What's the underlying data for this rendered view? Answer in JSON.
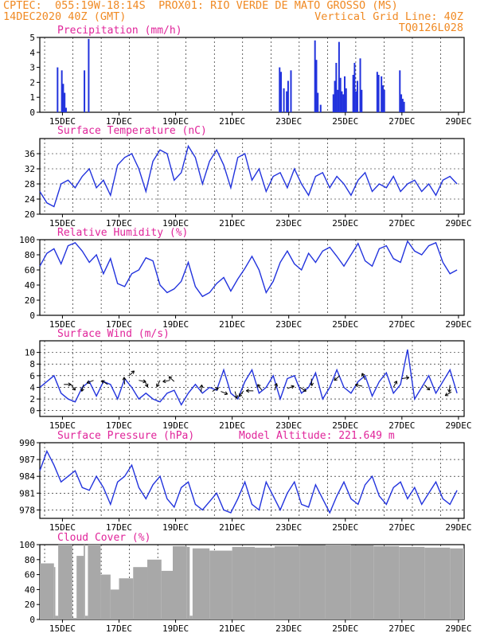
{
  "header": {
    "line1_left": "CPTEC:  055:19W-18:14S  PROX01: RIO VERDE DE MATO GROSSO (MS)",
    "line2_left": "14DEC2020 40Z (GMT)",
    "line2_right": "Vertical Grid Line: 40Z",
    "line3_right": "TQ0126L028"
  },
  "colors": {
    "header": "#f08a24",
    "titles": "#e0249a",
    "series": "#2233dd",
    "cloud": "#a8a8a8",
    "axis": "#000000"
  },
  "x_tick_labels": [
    "15DEC",
    "17DEC",
    "19DEC",
    "21DEC",
    "23DEC",
    "25DEC",
    "27DEC",
    "29DEC"
  ],
  "chart_data": [
    {
      "type": "bar",
      "title": "Precipitation (mm/h)",
      "ylim": [
        0,
        5
      ],
      "yticks": [
        0,
        1,
        2,
        3,
        4,
        5
      ],
      "values": [
        [
          0.6,
          3.0
        ],
        [
          0.75,
          2.8
        ],
        [
          0.8,
          1.9
        ],
        [
          0.85,
          1.3
        ],
        [
          0.9,
          0.3
        ],
        [
          1.55,
          2.8
        ],
        [
          1.7,
          4.9
        ],
        [
          8.45,
          3.0
        ],
        [
          8.5,
          2.7
        ],
        [
          8.6,
          1.6
        ],
        [
          8.7,
          1.4
        ],
        [
          8.75,
          2.1
        ],
        [
          8.85,
          2.8
        ],
        [
          9.7,
          4.8
        ],
        [
          9.75,
          3.5
        ],
        [
          9.8,
          1.3
        ],
        [
          9.9,
          0.5
        ],
        [
          10.35,
          1.2
        ],
        [
          10.4,
          2.1
        ],
        [
          10.45,
          3.3
        ],
        [
          10.5,
          1.5
        ],
        [
          10.55,
          4.7
        ],
        [
          10.6,
          2.3
        ],
        [
          10.65,
          1.4
        ],
        [
          10.7,
          1.2
        ],
        [
          10.75,
          2.4
        ],
        [
          10.8,
          1.6
        ],
        [
          11.05,
          2.5
        ],
        [
          11.1,
          3.3
        ],
        [
          11.15,
          1.4
        ],
        [
          11.2,
          2.1
        ],
        [
          11.3,
          3.6
        ],
        [
          11.35,
          1.5
        ],
        [
          11.9,
          2.7
        ],
        [
          11.95,
          2.5
        ],
        [
          12.05,
          2.4
        ],
        [
          12.1,
          1.8
        ],
        [
          12.15,
          1.5
        ],
        [
          12.7,
          2.8
        ],
        [
          12.75,
          1.2
        ],
        [
          12.8,
          0.9
        ],
        [
          12.85,
          0.7
        ]
      ]
    },
    {
      "type": "line",
      "title": "Surface Temperature (nC)",
      "ylim": [
        20,
        40
      ],
      "yticks": [
        20,
        24,
        28,
        32,
        36
      ],
      "x": [
        0,
        0.25,
        0.5,
        0.75,
        1,
        1.25,
        1.5,
        1.75,
        2,
        2.25,
        2.5,
        2.75,
        3,
        3.25,
        3.5,
        3.75,
        4,
        4.25,
        4.5,
        4.75,
        5,
        5.25,
        5.5,
        5.75,
        6,
        6.25,
        6.5,
        6.75,
        7,
        7.25,
        7.5,
        7.75,
        8,
        8.25,
        8.5,
        8.75,
        9,
        9.25,
        9.5,
        9.75,
        10,
        10.25,
        10.5,
        10.75,
        11,
        11.25,
        11.5,
        11.75,
        12,
        12.25,
        12.5,
        12.75,
        13,
        13.25,
        13.5,
        13.75,
        14,
        14.25,
        14.5,
        14.75
      ],
      "y": [
        26,
        23,
        22,
        28,
        29,
        27,
        30,
        32,
        27,
        29,
        25,
        33,
        35,
        36,
        32,
        26,
        34,
        37,
        36,
        29,
        31,
        38,
        35,
        28,
        34,
        37,
        33,
        27,
        35,
        36,
        29,
        32,
        26,
        30,
        31,
        27,
        32,
        28,
        25,
        30,
        31,
        27,
        30,
        28,
        25,
        29,
        31,
        26,
        28,
        27,
        30,
        26,
        28,
        29,
        26,
        28,
        25,
        29,
        30,
        28
      ]
    },
    {
      "type": "line",
      "title": "Relative Humidity (%)",
      "ylim": [
        0,
        100
      ],
      "yticks": [
        0,
        20,
        40,
        60,
        80,
        100
      ],
      "x": [
        0,
        0.25,
        0.5,
        0.75,
        1,
        1.25,
        1.5,
        1.75,
        2,
        2.25,
        2.5,
        2.75,
        3,
        3.25,
        3.5,
        3.75,
        4,
        4.25,
        4.5,
        4.75,
        5,
        5.25,
        5.5,
        5.75,
        6,
        6.25,
        6.5,
        6.75,
        7,
        7.25,
        7.5,
        7.75,
        8,
        8.25,
        8.5,
        8.75,
        9,
        9.25,
        9.5,
        9.75,
        10,
        10.25,
        10.5,
        10.75,
        11,
        11.25,
        11.5,
        11.75,
        12,
        12.25,
        12.5,
        12.75,
        13,
        13.25,
        13.5,
        13.75,
        14,
        14.25,
        14.5,
        14.75
      ],
      "y": [
        65,
        82,
        88,
        68,
        92,
        96,
        85,
        70,
        80,
        55,
        75,
        42,
        38,
        55,
        60,
        76,
        72,
        40,
        30,
        35,
        45,
        70,
        38,
        25,
        30,
        42,
        50,
        32,
        48,
        62,
        78,
        60,
        30,
        45,
        70,
        85,
        68,
        60,
        82,
        70,
        85,
        90,
        78,
        65,
        80,
        95,
        72,
        65,
        88,
        92,
        75,
        70,
        98,
        85,
        80,
        92,
        96,
        70,
        55,
        60
      ]
    },
    {
      "type": "line",
      "title": "Surface Wind (m/s)",
      "ylim": [
        -1,
        12
      ],
      "yticks": [
        0,
        2,
        4,
        6,
        8,
        10
      ],
      "x": [
        0,
        0.25,
        0.5,
        0.75,
        1,
        1.25,
        1.5,
        1.75,
        2,
        2.25,
        2.5,
        2.75,
        3,
        3.25,
        3.5,
        3.75,
        4,
        4.25,
        4.5,
        4.75,
        5,
        5.25,
        5.5,
        5.75,
        6,
        6.25,
        6.5,
        6.75,
        7,
        7.25,
        7.5,
        7.75,
        8,
        8.25,
        8.5,
        8.75,
        9,
        9.25,
        9.5,
        9.75,
        10,
        10.25,
        10.5,
        10.75,
        11,
        11.25,
        11.5,
        11.75,
        12,
        12.25,
        12.5,
        12.75,
        13,
        13.25,
        13.5,
        13.75,
        14,
        14.25,
        14.5,
        14.75
      ],
      "y": [
        4,
        5,
        6,
        3,
        2,
        1.5,
        4,
        5,
        2.5,
        5,
        4.5,
        2,
        5.5,
        4,
        2,
        3,
        2,
        1.5,
        3,
        3.5,
        1,
        3,
        4.5,
        3,
        4,
        3.5,
        7,
        3,
        2,
        5,
        7,
        3,
        4,
        6,
        2,
        5.5,
        6,
        3,
        4,
        6.5,
        2,
        4,
        7,
        4,
        3,
        5,
        6,
        2.5,
        5,
        6.5,
        3,
        4.5,
        10.5,
        2,
        4,
        6,
        3,
        5,
        7,
        3
      ],
      "arrows": [
        [
          0.85,
          4.5
        ],
        [
          1.1,
          4.5
        ],
        [
          1.55,
          4.5
        ],
        [
          1.9,
          5.2
        ],
        [
          2.4,
          4.5
        ],
        [
          3,
          4.5
        ],
        [
          3.15,
          6
        ],
        [
          3.5,
          5.2
        ],
        [
          3.7,
          5.2
        ],
        [
          4.25,
          5.2
        ],
        [
          4.6,
          5.2
        ],
        [
          4.75,
          5
        ],
        [
          5.7,
          3.2
        ],
        [
          6.1,
          3.3
        ],
        [
          6.4,
          3.3
        ],
        [
          6.9,
          3.3
        ],
        [
          7.2,
          3.4
        ],
        [
          7.55,
          3.4
        ],
        [
          7.85,
          3.5
        ],
        [
          8.3,
          3.5
        ],
        [
          8.75,
          3.8
        ],
        [
          9.2,
          4
        ],
        [
          9.6,
          5.5
        ],
        [
          10.6,
          6
        ],
        [
          11.4,
          4.2
        ],
        [
          11.5,
          5.3
        ],
        [
          12.5,
          4
        ],
        [
          12.8,
          5.5
        ],
        [
          13.6,
          4.4
        ],
        [
          14.5,
          4.4
        ],
        [
          14.55,
          3.2
        ]
      ]
    },
    {
      "type": "line",
      "title": "Surface Pressure (hPa)",
      "annotation": "Model Altitude: 221.649 m",
      "ylim": [
        976.5,
        990
      ],
      "yticks": [
        978,
        981,
        984,
        987,
        990
      ],
      "x": [
        0,
        0.25,
        0.5,
        0.75,
        1,
        1.25,
        1.5,
        1.75,
        2,
        2.25,
        2.5,
        2.75,
        3,
        3.25,
        3.5,
        3.75,
        4,
        4.25,
        4.5,
        4.75,
        5,
        5.25,
        5.5,
        5.75,
        6,
        6.25,
        6.5,
        6.75,
        7,
        7.25,
        7.5,
        7.75,
        8,
        8.25,
        8.5,
        8.75,
        9,
        9.25,
        9.5,
        9.75,
        10,
        10.25,
        10.5,
        10.75,
        11,
        11.25,
        11.5,
        11.75,
        12,
        12.25,
        12.5,
        12.75,
        13,
        13.25,
        13.5,
        13.75,
        14,
        14.25,
        14.5,
        14.75
      ],
      "y": [
        985,
        988.5,
        986,
        983,
        984,
        985,
        982,
        981.5,
        984,
        982,
        979,
        983,
        984,
        986,
        982,
        980,
        982.5,
        984,
        980,
        978.5,
        982,
        983,
        979,
        978,
        979.5,
        981,
        978,
        977.5,
        980,
        983,
        979,
        978,
        983,
        980.5,
        978,
        981,
        983,
        979,
        978.5,
        982.5,
        980,
        977.5,
        980.5,
        983,
        980,
        979,
        982.5,
        984,
        980.5,
        979,
        982,
        983,
        980,
        982,
        979,
        981,
        983,
        980,
        979,
        981.5
      ]
    },
    {
      "type": "bar",
      "title": "Cloud Cover (%)",
      "ylim": [
        0,
        100
      ],
      "yticks": [
        0,
        20,
        40,
        60,
        80,
        100
      ],
      "values": [
        [
          0,
          75
        ],
        [
          0.5,
          70
        ],
        [
          0.55,
          5
        ],
        [
          0.65,
          100
        ],
        [
          1.15,
          2
        ],
        [
          1.3,
          85
        ],
        [
          1.55,
          100
        ],
        [
          1.6,
          5
        ],
        [
          1.7,
          100
        ],
        [
          2.15,
          60
        ],
        [
          2.5,
          40
        ],
        [
          2.8,
          55
        ],
        [
          3.3,
          70
        ],
        [
          3.8,
          80
        ],
        [
          4.3,
          65
        ],
        [
          4.7,
          98
        ],
        [
          5.2,
          97
        ],
        [
          5.3,
          5
        ],
        [
          5.4,
          95
        ],
        [
          6.0,
          92
        ],
        [
          6.8,
          97
        ],
        [
          7.6,
          96
        ],
        [
          8.3,
          98
        ],
        [
          9.2,
          99
        ],
        [
          10.1,
          100
        ],
        [
          11.0,
          99
        ],
        [
          11.8,
          98
        ],
        [
          12.7,
          97
        ],
        [
          13.6,
          96
        ],
        [
          14.5,
          95
        ],
        [
          14.95,
          95
        ]
      ]
    }
  ],
  "panel_titles": {
    "precip": "Precipitation (mm/h)",
    "temp": "Surface Temperature (nC)",
    "rh": "Relative Humidity (%)",
    "wind": "Surface Wind (m/s)",
    "pres": "Surface Pressure (hPa)",
    "pres_note": "Model Altitude: 221.649 m",
    "cloud": "Cloud Cover (%)"
  }
}
